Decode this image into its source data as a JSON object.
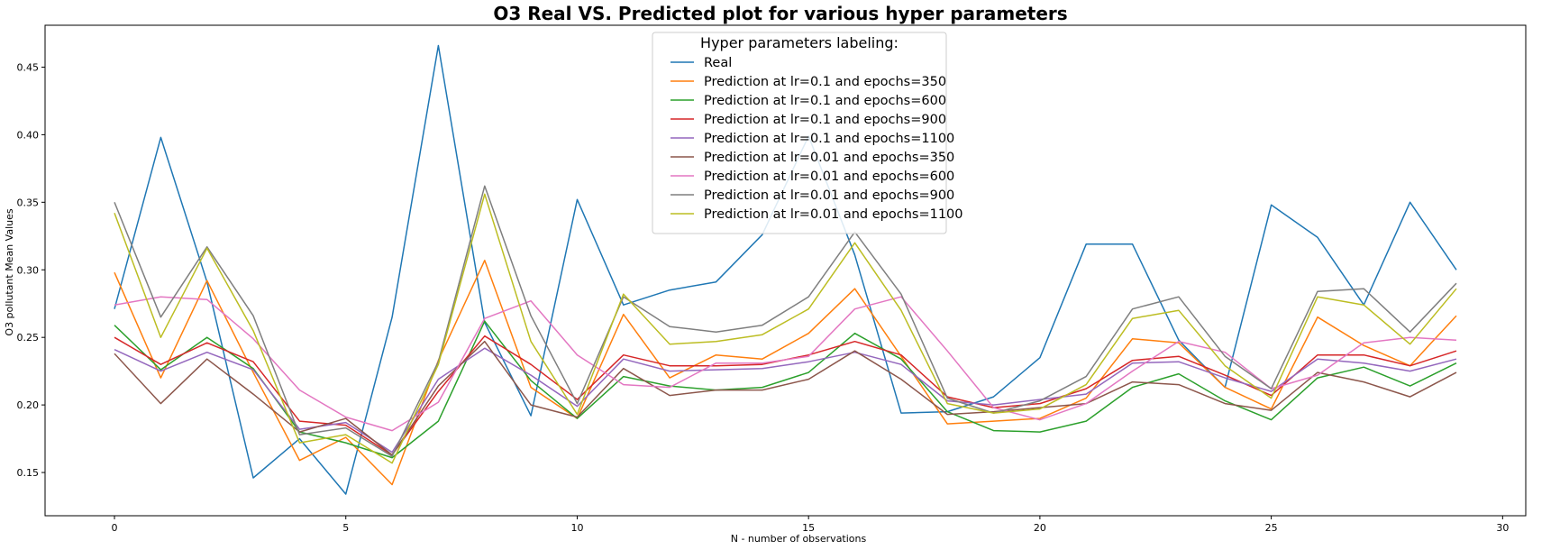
{
  "chart_data": {
    "type": "line",
    "title": "O3 Real VS. Predicted plot for various hyper parameters",
    "xlabel": "N - number of observations",
    "ylabel": "O3 pollutant Mean Values",
    "xlim": [
      -1.5,
      30.5
    ],
    "ylim": [
      0.118,
      0.481
    ],
    "xticks": [
      0,
      5,
      10,
      15,
      20,
      25,
      30
    ],
    "yticks": [
      0.15,
      0.2,
      0.25,
      0.3,
      0.35,
      0.4,
      0.45
    ],
    "ytick_labels": [
      "0.15",
      "0.20",
      "0.25",
      "0.30",
      "0.35",
      "0.40",
      "0.45"
    ],
    "grid": false,
    "legend": {
      "title": "Hyper parameters labeling:",
      "placement": "upper-center"
    },
    "x": [
      0,
      1,
      2,
      3,
      4,
      5,
      6,
      7,
      8,
      9,
      10,
      11,
      12,
      13,
      14,
      15,
      16,
      17,
      18,
      19,
      20,
      21,
      22,
      23,
      24,
      25,
      26,
      27,
      28,
      29
    ],
    "series": [
      {
        "name": "Real",
        "color": "#1f77b4",
        "values": [
          0.271,
          0.398,
          0.291,
          0.146,
          0.175,
          0.134,
          0.265,
          0.466,
          0.261,
          0.192,
          0.352,
          0.274,
          0.285,
          0.291,
          0.326,
          0.399,
          0.311,
          0.194,
          0.195,
          0.206,
          0.235,
          0.319,
          0.319,
          0.248,
          0.213,
          0.348,
          0.324,
          0.274,
          0.35,
          0.3
        ]
      },
      {
        "name": "Prediction at lr=0.1 and epochs=350",
        "color": "#ff7f0e",
        "values": [
          0.298,
          0.22,
          0.292,
          0.224,
          0.159,
          0.176,
          0.141,
          0.233,
          0.307,
          0.213,
          0.19,
          0.267,
          0.22,
          0.237,
          0.234,
          0.253,
          0.286,
          0.236,
          0.186,
          0.188,
          0.19,
          0.205,
          0.249,
          0.246,
          0.213,
          0.197,
          0.265,
          0.244,
          0.229,
          0.266
        ]
      },
      {
        "name": "Prediction at lr=0.1 and epochs=600",
        "color": "#2ca02c",
        "values": [
          0.259,
          0.226,
          0.25,
          0.227,
          0.18,
          0.172,
          0.161,
          0.188,
          0.262,
          0.218,
          0.19,
          0.221,
          0.214,
          0.211,
          0.213,
          0.224,
          0.253,
          0.234,
          0.195,
          0.181,
          0.18,
          0.188,
          0.213,
          0.223,
          0.203,
          0.189,
          0.22,
          0.228,
          0.214,
          0.231
        ]
      },
      {
        "name": "Prediction at lr=0.1 and epochs=900",
        "color": "#d62728",
        "values": [
          0.25,
          0.23,
          0.246,
          0.232,
          0.188,
          0.185,
          0.163,
          0.21,
          0.251,
          0.23,
          0.204,
          0.237,
          0.229,
          0.229,
          0.23,
          0.237,
          0.247,
          0.237,
          0.206,
          0.198,
          0.201,
          0.212,
          0.233,
          0.236,
          0.222,
          0.207,
          0.237,
          0.237,
          0.229,
          0.24
        ]
      },
      {
        "name": "Prediction at lr=0.1 and epochs=1100",
        "color": "#9467bd",
        "values": [
          0.241,
          0.225,
          0.239,
          0.226,
          0.182,
          0.187,
          0.165,
          0.219,
          0.242,
          0.222,
          0.199,
          0.234,
          0.225,
          0.226,
          0.227,
          0.232,
          0.239,
          0.23,
          0.203,
          0.2,
          0.204,
          0.208,
          0.231,
          0.232,
          0.22,
          0.21,
          0.234,
          0.231,
          0.225,
          0.234
        ]
      },
      {
        "name": "Prediction at lr=0.01 and epochs=350",
        "color": "#8c564b",
        "values": [
          0.238,
          0.201,
          0.234,
          0.208,
          0.18,
          0.19,
          0.163,
          0.214,
          0.247,
          0.2,
          0.191,
          0.227,
          0.207,
          0.211,
          0.211,
          0.219,
          0.24,
          0.219,
          0.193,
          0.195,
          0.198,
          0.201,
          0.217,
          0.215,
          0.201,
          0.196,
          0.224,
          0.217,
          0.206,
          0.224
        ]
      },
      {
        "name": "Prediction at lr=0.01 and epochs=600",
        "color": "#e377c2",
        "values": [
          0.274,
          0.28,
          0.278,
          0.249,
          0.211,
          0.191,
          0.181,
          0.202,
          0.264,
          0.277,
          0.237,
          0.215,
          0.213,
          0.231,
          0.231,
          0.236,
          0.271,
          0.28,
          0.24,
          0.198,
          0.189,
          0.201,
          0.225,
          0.247,
          0.239,
          0.212,
          0.222,
          0.246,
          0.25,
          0.248
        ]
      },
      {
        "name": "Prediction at lr=0.01 and epochs=900",
        "color": "#7f7f7f",
        "values": [
          0.35,
          0.265,
          0.317,
          0.266,
          0.178,
          0.183,
          0.162,
          0.232,
          0.362,
          0.266,
          0.201,
          0.28,
          0.258,
          0.254,
          0.259,
          0.28,
          0.328,
          0.282,
          0.205,
          0.194,
          0.203,
          0.221,
          0.271,
          0.28,
          0.236,
          0.212,
          0.284,
          0.286,
          0.254,
          0.29
        ]
      },
      {
        "name": "Prediction at lr=0.01 and epochs=1100",
        "color": "#bcbd22",
        "values": [
          0.342,
          0.25,
          0.316,
          0.255,
          0.172,
          0.178,
          0.157,
          0.23,
          0.356,
          0.247,
          0.193,
          0.282,
          0.245,
          0.247,
          0.252,
          0.271,
          0.32,
          0.27,
          0.201,
          0.194,
          0.197,
          0.215,
          0.264,
          0.27,
          0.229,
          0.205,
          0.28,
          0.274,
          0.245,
          0.286
        ]
      }
    ]
  }
}
